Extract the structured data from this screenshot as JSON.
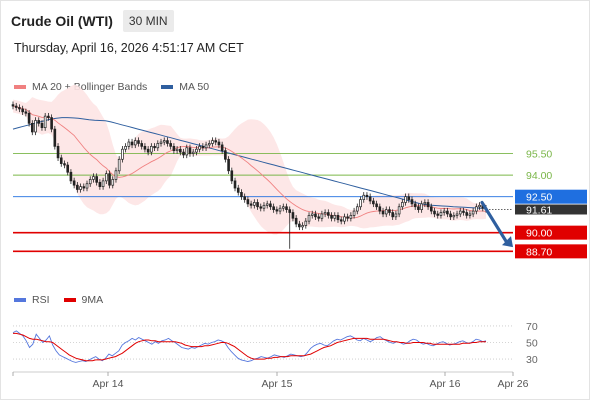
{
  "header": {
    "title": "Crude Oil (WTI)",
    "timeframe": "30 MIN"
  },
  "timestamp": "Thursday, April 16, 2026 4:51:17 AM CET",
  "colors": {
    "ma20": "#f08080",
    "ma50": "#2f5f9f",
    "bollinger_fill": "#fde4e4",
    "candle": "#222222",
    "resistance": "#7ab648",
    "pivot": "#1f6fe0",
    "support": "#e00000",
    "rsi": "#5577dd",
    "rsi_ma": "#e00000",
    "price_box": "#333333",
    "arrow": "#2f5f9f"
  },
  "legend_price": [
    "MA 20 + Bollinger Bands",
    "MA 50"
  ],
  "legend_rsi": [
    "RSI",
    "9MA"
  ],
  "chart_data": [
    {
      "type": "candlestick",
      "x_ticks": [
        "Apr 14",
        "Apr 15",
        "Apr 16",
        "Apr 26"
      ],
      "ylim": [
        86.5,
        99.5
      ],
      "current_price": 91.61,
      "levels": [
        {
          "label": "95.50",
          "value": 95.5,
          "kind": "resistance"
        },
        {
          "label": "94.00",
          "value": 94.0,
          "kind": "resistance"
        },
        {
          "label": "92.50",
          "value": 92.5,
          "kind": "pivot"
        },
        {
          "label": "90.00",
          "value": 90.0,
          "kind": "support"
        },
        {
          "label": "88.70",
          "value": 88.7,
          "kind": "support"
        }
      ],
      "close": [
        98.8,
        98.7,
        98.6,
        98.4,
        98.3,
        97.6,
        97.0,
        97.8,
        97.6,
        97.3,
        98.1,
        98.0,
        97.2,
        96.0,
        95.2,
        94.8,
        94.7,
        94.2,
        93.6,
        93.3,
        93.0,
        93.2,
        93.1,
        93.4,
        93.7,
        93.9,
        93.5,
        93.2,
        93.6,
        94.1,
        93.3,
        93.7,
        94.3,
        95.1,
        95.8,
        96.0,
        96.3,
        96.1,
        96.4,
        96.2,
        96.0,
        95.8,
        95.6,
        96.0,
        95.9,
        96.2,
        96.3,
        96.4,
        96.2,
        96.0,
        95.7,
        95.8,
        95.6,
        95.4,
        95.9,
        95.5,
        95.6,
        95.8,
        96.0,
        95.9,
        96.1,
        96.2,
        96.4,
        96.3,
        96.1,
        95.7,
        95.1,
        94.3,
        93.6,
        93.1,
        92.8,
        92.5,
        92.3,
        92.0,
        91.9,
        92.1,
        91.8,
        91.7,
        91.9,
        92.0,
        91.8,
        91.6,
        91.5,
        91.7,
        91.8,
        91.6,
        91.4,
        91.0,
        90.6,
        90.4,
        90.5,
        90.8,
        91.2,
        91.3,
        91.1,
        91.0,
        91.3,
        91.4,
        91.2,
        91.0,
        91.2,
        90.9,
        90.8,
        91.1,
        91.0,
        91.2,
        91.5,
        91.8,
        92.3,
        92.6,
        92.5,
        92.2,
        92.0,
        91.8,
        91.5,
        91.3,
        91.6,
        91.4,
        91.1,
        91.3,
        91.8,
        92.1,
        92.5,
        92.3,
        92.0,
        91.8,
        91.6,
        92.0,
        92.1,
        91.8,
        91.5,
        91.3,
        91.2,
        91.4,
        91.5,
        91.3,
        91.1,
        91.2,
        91.3,
        91.5,
        91.4,
        91.2,
        91.3,
        91.5,
        91.8,
        91.9,
        91.7,
        91.61
      ],
      "ma50": [
        97.2,
        97.3,
        97.4,
        97.5,
        97.6,
        97.7,
        97.8,
        97.9,
        97.95,
        98.0,
        98.0,
        97.98,
        97.95,
        97.9,
        97.85,
        97.82,
        97.8,
        97.78,
        97.7,
        97.6,
        97.5,
        97.4,
        97.3,
        97.2,
        97.1,
        97.0,
        96.9,
        96.8,
        96.7,
        96.6,
        96.5,
        96.4,
        96.3,
        96.2,
        96.1,
        96.0,
        95.9,
        95.8,
        95.7,
        95.6,
        95.5,
        95.4,
        95.3,
        95.2,
        95.1,
        95.0,
        94.9,
        94.8,
        94.7,
        94.6,
        94.5,
        94.4,
        94.3,
        94.2,
        94.1,
        94.0,
        93.9,
        93.8,
        93.7,
        93.6,
        93.5,
        93.4,
        93.3,
        93.2,
        93.1,
        93.0,
        92.9,
        92.8,
        92.7,
        92.6,
        92.5,
        92.4,
        92.3,
        92.2,
        92.1,
        92.0,
        91.95,
        91.9,
        91.88,
        91.85,
        91.83,
        91.8,
        91.78,
        91.76,
        91.74,
        91.72,
        91.7,
        91.7
      ]
    },
    {
      "type": "line",
      "name_series": [
        "RSI",
        "9MA"
      ],
      "y_ticks": [
        70,
        50,
        30
      ],
      "ylim": [
        18,
        82
      ],
      "rsi": [
        62,
        64,
        61,
        58,
        52,
        44,
        48,
        60,
        55,
        50,
        53,
        58,
        47,
        40,
        35,
        33,
        31,
        29,
        27,
        26,
        27,
        28,
        27,
        29,
        31,
        33,
        30,
        28,
        31,
        36,
        34,
        37,
        40,
        47,
        50,
        52,
        55,
        53,
        56,
        54,
        52,
        50,
        48,
        51,
        49,
        52,
        53,
        55,
        52,
        50,
        47,
        44,
        43,
        42,
        44,
        43,
        45,
        47,
        49,
        48,
        50,
        51,
        53,
        52,
        50,
        44,
        39,
        35,
        31,
        29,
        28,
        27,
        28,
        30,
        31,
        33,
        32,
        31,
        33,
        35,
        34,
        33,
        32,
        34,
        36,
        35,
        34,
        33,
        34,
        38,
        43,
        46,
        48,
        49,
        47,
        46,
        49,
        52,
        54,
        53,
        55,
        57,
        58,
        56,
        53,
        52,
        55,
        53,
        51,
        53,
        56,
        57,
        54,
        52,
        50,
        49,
        51,
        50,
        48,
        49,
        52,
        54,
        53,
        50,
        48,
        49,
        47,
        46,
        48,
        50,
        51,
        49,
        47,
        48,
        49,
        51,
        52,
        50,
        49,
        51,
        54,
        53,
        51,
        52
      ],
      "rsi_ma": [
        61,
        61,
        60,
        59,
        57,
        55,
        54,
        54,
        53,
        52,
        51,
        51,
        50,
        47,
        44,
        41,
        38,
        35,
        33,
        31,
        30,
        29,
        28,
        28,
        28,
        29,
        29,
        29,
        30,
        31,
        32,
        33,
        35,
        37,
        40,
        43,
        46,
        49,
        51,
        52,
        53,
        53,
        52,
        52,
        51,
        51,
        51,
        51,
        51,
        51,
        50,
        49,
        47,
        46,
        45,
        45,
        45,
        45,
        46,
        46,
        47,
        48,
        49,
        50,
        50,
        49,
        47,
        45,
        42,
        39,
        36,
        33,
        31,
        30,
        30,
        30,
        30,
        31,
        31,
        32,
        32,
        33,
        33,
        33,
        34,
        34,
        34,
        34,
        34,
        35,
        36,
        38,
        40,
        42,
        44,
        45,
        46,
        48,
        50,
        51,
        52,
        53,
        54,
        55,
        55,
        55,
        55,
        55,
        54,
        54,
        54,
        54,
        54,
        53,
        52,
        51,
        51,
        50,
        50,
        49,
        49,
        50,
        50,
        50,
        50,
        49,
        49,
        48,
        48,
        48,
        48,
        48,
        48,
        48,
        48,
        48,
        49,
        49,
        49,
        50,
        50,
        51,
        51,
        51
      ]
    }
  ]
}
